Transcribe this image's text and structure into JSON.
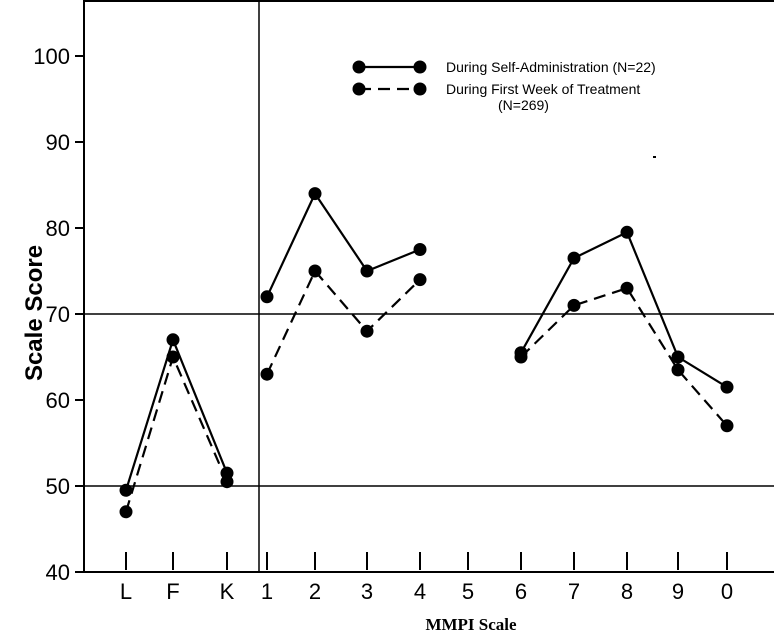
{
  "chart_data": {
    "type": "line",
    "title": "",
    "xlabel": "MMPI Scale",
    "ylabel": "Scale Score",
    "ylim": [
      40,
      105
    ],
    "yticks": [
      "40",
      "50",
      "60",
      "70",
      "80",
      "90",
      "100"
    ],
    "categories": [
      "L",
      "F",
      "K",
      "1",
      "2",
      "3",
      "4",
      "5",
      "6",
      "7",
      "8",
      "9",
      "0"
    ],
    "reference_lines": [
      50,
      70
    ],
    "groups": [
      [
        "L",
        "F",
        "K"
      ],
      [
        "1",
        "2",
        "3",
        "4"
      ],
      [
        "6",
        "7",
        "8",
        "9",
        "0"
      ]
    ],
    "legend": {
      "position": "top-right",
      "entries": [
        {
          "label": "During Self-Administration (N=22)"
        },
        {
          "label": "During First Week of Treatment"
        },
        {
          "label": "(N=269)"
        }
      ]
    },
    "series": [
      {
        "label": "During Self-Administration (N=22)",
        "style": "solid",
        "values": [
          49.5,
          67,
          51.5,
          72,
          84,
          75,
          77.5,
          null,
          65.5,
          76.5,
          79.5,
          65,
          61.5
        ]
      },
      {
        "label": "During First Week of Treatment (N=269)",
        "style": "dashed",
        "values": [
          47,
          65,
          50.5,
          63,
          75,
          68,
          74,
          null,
          65,
          71,
          73,
          63.5,
          57
        ]
      }
    ]
  }
}
